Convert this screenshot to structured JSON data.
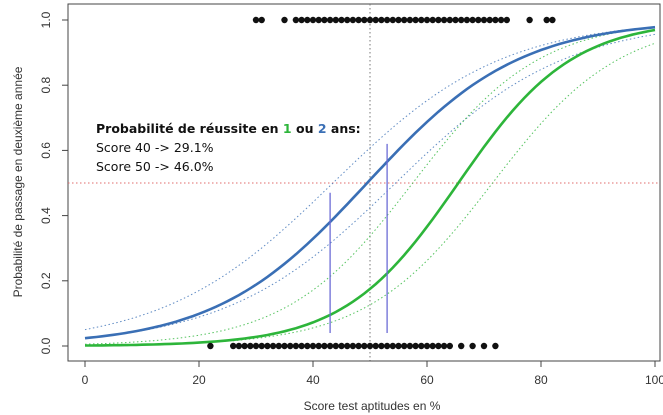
{
  "chart_data": {
    "type": "line",
    "xlabel": "Score test aptitudes en %",
    "ylabel": "Probabilité de passage en deuxième année",
    "xlim": [
      0,
      100
    ],
    "ylim": [
      0,
      1
    ],
    "x_ticks": [
      "0",
      "20",
      "40",
      "60",
      "80",
      "100"
    ],
    "y_ticks": [
      "0.0",
      "0.2",
      "0.4",
      "0.6",
      "0.8",
      "1.0"
    ],
    "reference_lines": {
      "vertical_x": 50,
      "horizontal_y": 0.5
    },
    "annotation": {
      "prefix": "Probabilité de réussite en ",
      "one": "1",
      "or": " ou ",
      "two": "2",
      "suffix": " ans:",
      "line1": "Score 40 -> 29.1%",
      "line2": "Score 50 -> 46.0%"
    },
    "series": [
      {
        "color": "#3a6fb5",
        "logistic": {
          "midpoint": 49.5,
          "slope": 0.075
        },
        "ci_offsets_x": [
          -6,
          5
        ],
        "marker": {
          "x": 43,
          "y": 0.47
        }
      },
      {
        "color": "#2db53a",
        "logistic": {
          "midpoint": 65.5,
          "slope": 0.1
        },
        "ci_offsets_x": [
          -8,
          6
        ],
        "marker": {
          "x": 53,
          "y": 0.62
        }
      }
    ],
    "points_y1": [
      30,
      31,
      35,
      37,
      38,
      39,
      40,
      41,
      42,
      43,
      44,
      45,
      46,
      47,
      48,
      49,
      50,
      51,
      52,
      53,
      54,
      55,
      56,
      57,
      58,
      59,
      60,
      61,
      62,
      63,
      64,
      65,
      66,
      67,
      68,
      69,
      70,
      71,
      72,
      73,
      74,
      78,
      81,
      82
    ],
    "points_y0": [
      22,
      26,
      27,
      28,
      29,
      30,
      31,
      32,
      33,
      34,
      35,
      36,
      37,
      38,
      39,
      40,
      41,
      42,
      43,
      44,
      45,
      46,
      47,
      48,
      49,
      50,
      51,
      52,
      53,
      54,
      55,
      56,
      57,
      58,
      59,
      60,
      61,
      62,
      63,
      64,
      66,
      68,
      70,
      72
    ]
  }
}
